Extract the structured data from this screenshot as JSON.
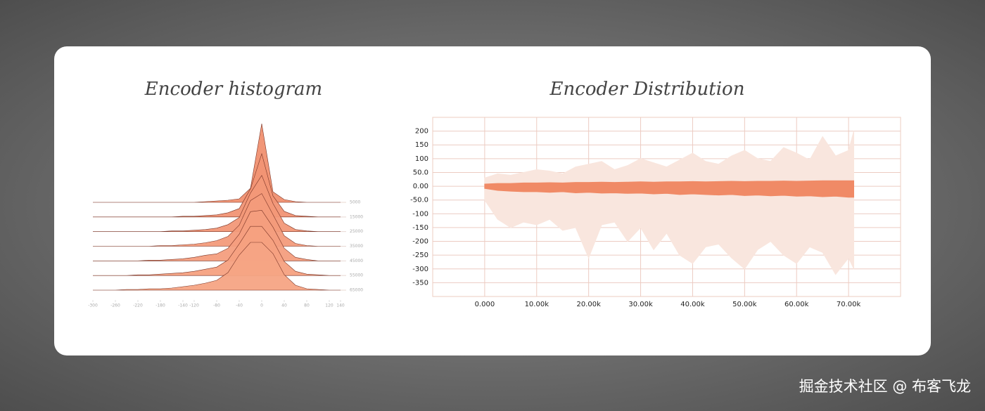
{
  "chart_data": [
    {
      "type": "ridgeline",
      "title": "Encoder histogram",
      "x": [
        -300,
        -280,
        -260,
        -240,
        -220,
        -200,
        -180,
        -160,
        -140,
        -120,
        -100,
        -80,
        -60,
        -40,
        -20,
        0,
        20,
        40,
        60,
        80,
        100,
        120,
        140
      ],
      "xlim": [
        -300,
        140
      ],
      "xticks": [
        -300,
        -260,
        -220,
        -180,
        -140,
        -120,
        -80,
        -40,
        0,
        40,
        80,
        120,
        140
      ],
      "series": [
        {
          "name": "5000",
          "color": "#f09070",
          "values": [
            0,
            0,
            0,
            0,
            0,
            0,
            0,
            0,
            0,
            0,
            1,
            2,
            3,
            5,
            20,
            112,
            15,
            4,
            1,
            0,
            0,
            0,
            0
          ]
        },
        {
          "name": "15000",
          "color": "#f19474",
          "values": [
            0,
            0,
            0,
            0,
            0,
            0,
            0,
            0,
            1,
            1,
            2,
            3,
            6,
            12,
            40,
            90,
            30,
            8,
            2,
            1,
            0,
            0,
            0
          ]
        },
        {
          "name": "25000",
          "color": "#f29878",
          "values": [
            0,
            0,
            0,
            0,
            0,
            0,
            0,
            1,
            1,
            2,
            3,
            5,
            10,
            20,
            55,
            80,
            40,
            12,
            3,
            1,
            0,
            0,
            0
          ]
        },
        {
          "name": "35000",
          "color": "#f39b7b",
          "values": [
            0,
            0,
            0,
            0,
            0,
            0,
            1,
            1,
            2,
            3,
            5,
            8,
            14,
            30,
            65,
            75,
            45,
            15,
            4,
            1,
            0,
            0,
            0
          ]
        },
        {
          "name": "45000",
          "color": "#f49e7e",
          "values": [
            0,
            0,
            0,
            0,
            0,
            1,
            1,
            2,
            3,
            5,
            8,
            10,
            18,
            38,
            70,
            72,
            48,
            18,
            5,
            2,
            0,
            0,
            0
          ]
        },
        {
          "name": "55000",
          "color": "#f5a181",
          "values": [
            0,
            0,
            0,
            0,
            1,
            1,
            2,
            3,
            4,
            6,
            9,
            12,
            22,
            45,
            70,
            70,
            50,
            20,
            6,
            2,
            1,
            0,
            0
          ]
        },
        {
          "name": "65000",
          "color": "#f6a484",
          "values": [
            0,
            0,
            0,
            1,
            1,
            2,
            2,
            3,
            5,
            7,
            10,
            14,
            25,
            50,
            68,
            68,
            52,
            22,
            7,
            2,
            1,
            0,
            0
          ]
        }
      ]
    },
    {
      "type": "distribution",
      "title": "Encoder Distribution",
      "x": [
        0,
        2500,
        5000,
        7500,
        10000,
        12500,
        15000,
        17500,
        20000,
        22500,
        25000,
        27500,
        30000,
        32500,
        35000,
        37500,
        40000,
        42500,
        45000,
        47500,
        50000,
        52500,
        55000,
        57500,
        60000,
        62500,
        65000,
        67500,
        70000,
        71000
      ],
      "xlim": [
        -10000,
        80000
      ],
      "ylim": [
        -400,
        250
      ],
      "grid": true,
      "xticks": [
        {
          "value": 0,
          "label": "0.000"
        },
        {
          "value": 10000,
          "label": "10.00k"
        },
        {
          "value": 20000,
          "label": "20.00k"
        },
        {
          "value": 30000,
          "label": "30.00k"
        },
        {
          "value": 40000,
          "label": "40.00k"
        },
        {
          "value": 50000,
          "label": "50.00k"
        },
        {
          "value": 60000,
          "label": "60.00k"
        },
        {
          "value": 70000,
          "label": "70.00k"
        }
      ],
      "yticks": [
        200,
        150,
        100,
        {
          "value": 50,
          "label": "50.0"
        },
        {
          "value": 0,
          "label": "0.00"
        },
        {
          "value": -50,
          "label": "-50.0"
        },
        -100,
        -150,
        -200,
        -250,
        -300,
        -350
      ],
      "bands": [
        {
          "color": "#f9e6de",
          "upper": [
            30,
            45,
            40,
            50,
            60,
            55,
            45,
            70,
            80,
            90,
            60,
            75,
            100,
            85,
            70,
            95,
            120,
            90,
            80,
            110,
            130,
            100,
            90,
            140,
            120,
            95,
            180,
            110,
            130,
            200
          ],
          "lower": [
            -50,
            -120,
            -150,
            -130,
            -140,
            -120,
            -160,
            -150,
            -260,
            -140,
            -130,
            -200,
            -150,
            -230,
            -170,
            -250,
            -280,
            -220,
            -210,
            -260,
            -300,
            -230,
            -200,
            -250,
            -280,
            -220,
            -240,
            -320,
            -260,
            -300
          ]
        },
        {
          "color": "#f08a66",
          "upper": [
            8,
            10,
            10,
            12,
            12,
            13,
            12,
            14,
            14,
            15,
            14,
            15,
            16,
            15,
            16,
            16,
            17,
            16,
            17,
            18,
            17,
            18,
            18,
            19,
            18,
            19,
            20,
            20,
            20,
            20
          ],
          "lower": [
            -8,
            -15,
            -18,
            -20,
            -20,
            -22,
            -20,
            -24,
            -22,
            -25,
            -24,
            -26,
            -25,
            -28,
            -26,
            -30,
            -28,
            -30,
            -32,
            -30,
            -34,
            -32,
            -35,
            -33,
            -36,
            -35,
            -38,
            -36,
            -40,
            -40
          ]
        }
      ]
    }
  ],
  "watermark": "掘金技术社区 @ 布客飞龙"
}
